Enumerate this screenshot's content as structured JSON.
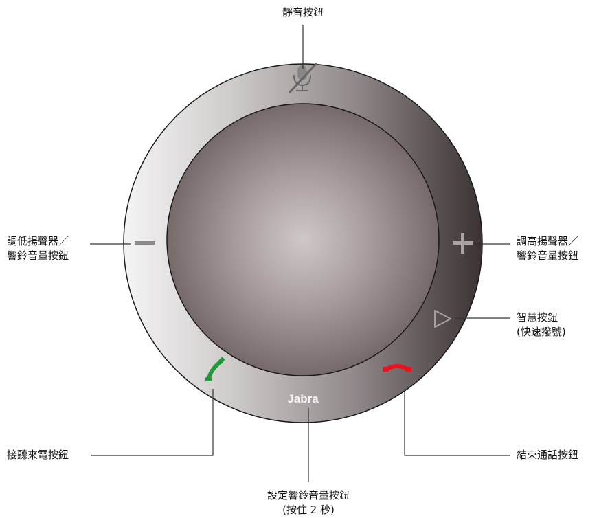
{
  "device": {
    "brand": "Jabra"
  },
  "labels": {
    "mute": [
      "靜音按鈕"
    ],
    "volume_down": [
      "調低揚聲器／",
      "響鈴音量按鈕"
    ],
    "volume_up": [
      "調高揚聲器／",
      "響鈴音量按鈕"
    ],
    "smart": [
      "智慧按鈕",
      "(快速撥號)"
    ],
    "answer": [
      "接聽來電按鈕"
    ],
    "end_call": [
      "結束通話按鈕"
    ],
    "ringer_setting": [
      "設定響鈴音量按鈕",
      "(按住 2 秒)"
    ]
  },
  "icons": {
    "mute": "microphone-muted-icon",
    "volume_down": "minus-icon",
    "volume_up": "plus-icon",
    "smart": "play-triangle-icon",
    "answer": "phone-answer-icon",
    "end_call": "phone-hangup-icon"
  },
  "colors": {
    "answer": "#1f9a3a",
    "end_call": "#e8131c",
    "leader_line": "#333333"
  }
}
